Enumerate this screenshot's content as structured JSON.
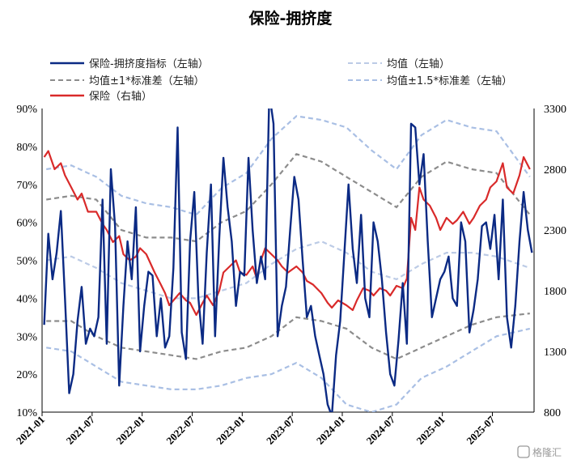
{
  "chart_data": {
    "type": "line",
    "title": "保险-拥挤度",
    "legend": [
      {
        "key": "crowding",
        "label": "保险-拥挤度指标（左轴）",
        "color": "#0b2a84",
        "style": "solid"
      },
      {
        "key": "mean",
        "label": "均值（左轴）",
        "color": "#bccbe6",
        "style": "dashed"
      },
      {
        "key": "band1",
        "label": "均值±1*标准差（左轴）",
        "color": "#8c8c8c",
        "style": "dashed"
      },
      {
        "key": "band15",
        "label": "均值±1.5*标准差（左轴）",
        "color": "#a9bfe4",
        "style": "dashed"
      },
      {
        "key": "index",
        "label": "保险（右轴）",
        "color": "#d92a2a",
        "style": "solid"
      }
    ],
    "left_axis": {
      "min": 0.1,
      "max": 0.9,
      "ticks": [
        "90%",
        "80%",
        "70%",
        "60%",
        "50%",
        "40%",
        "30%",
        "20%",
        "10%"
      ]
    },
    "right_axis": {
      "min": 800,
      "max": 3300,
      "ticks": [
        "3300",
        "2800",
        "2300",
        "1800",
        "1300",
        "800"
      ]
    },
    "x_labels": [
      "2021-01",
      "2021-07",
      "2022-01",
      "2022-07",
      "2023-01",
      "2023-07",
      "2024-01",
      "2024-07",
      "2025-01",
      "2025-07"
    ],
    "x_range": [
      "2021-01",
      "2025-11"
    ],
    "series": {
      "crowding": [
        [
          "2021-01",
          0.33
        ],
        [
          "2021-01",
          0.57
        ],
        [
          "2021-02",
          0.45
        ],
        [
          "2021-02",
          0.52
        ],
        [
          "2021-03",
          0.63
        ],
        [
          "2021-03",
          0.4
        ],
        [
          "2021-04",
          0.15
        ],
        [
          "2021-04",
          0.2
        ],
        [
          "2021-05",
          0.34
        ],
        [
          "2021-05",
          0.43
        ],
        [
          "2021-06",
          0.28
        ],
        [
          "2021-06",
          0.32
        ],
        [
          "2021-07",
          0.3
        ],
        [
          "2021-07",
          0.35
        ],
        [
          "2021-08",
          0.66
        ],
        [
          "2021-08",
          0.28
        ],
        [
          "2021-09",
          0.74
        ],
        [
          "2021-09",
          0.59
        ],
        [
          "2021-10",
          0.17
        ],
        [
          "2021-10",
          0.38
        ],
        [
          "2021-11",
          0.55
        ],
        [
          "2021-11",
          0.45
        ],
        [
          "2021-12",
          0.64
        ],
        [
          "2021-12",
          0.26
        ],
        [
          "2022-01",
          0.38
        ],
        [
          "2022-01",
          0.47
        ],
        [
          "2022-02",
          0.46
        ],
        [
          "2022-02",
          0.3
        ],
        [
          "2022-03",
          0.4
        ],
        [
          "2022-03",
          0.27
        ],
        [
          "2022-04",
          0.3
        ],
        [
          "2022-04",
          0.48
        ],
        [
          "2022-05",
          0.85
        ],
        [
          "2022-05",
          0.31
        ],
        [
          "2022-06",
          0.24
        ],
        [
          "2022-06",
          0.55
        ],
        [
          "2022-07",
          0.68
        ],
        [
          "2022-07",
          0.4
        ],
        [
          "2022-08",
          0.28
        ],
        [
          "2022-08",
          0.52
        ],
        [
          "2022-09",
          0.7
        ],
        [
          "2022-09",
          0.3
        ],
        [
          "2022-10",
          0.56
        ],
        [
          "2022-10",
          0.77
        ],
        [
          "2022-11",
          0.64
        ],
        [
          "2022-11",
          0.55
        ],
        [
          "2022-12",
          0.38
        ],
        [
          "2022-12",
          0.47
        ],
        [
          "2023-01",
          0.46
        ],
        [
          "2023-01",
          0.77
        ],
        [
          "2023-02",
          0.58
        ],
        [
          "2023-02",
          0.44
        ],
        [
          "2023-03",
          0.51
        ],
        [
          "2023-03",
          0.45
        ],
        [
          "2023-04",
          0.94
        ],
        [
          "2023-04",
          0.86
        ],
        [
          "2023-05",
          0.3
        ],
        [
          "2023-05",
          0.38
        ],
        [
          "2023-06",
          0.43
        ],
        [
          "2023-06",
          0.58
        ],
        [
          "2023-07",
          0.72
        ],
        [
          "2023-07",
          0.66
        ],
        [
          "2023-08",
          0.5
        ],
        [
          "2023-08",
          0.35
        ],
        [
          "2023-09",
          0.38
        ],
        [
          "2023-09",
          0.3
        ],
        [
          "2023-10",
          0.25
        ],
        [
          "2023-10",
          0.2
        ],
        [
          "2023-11",
          0.12
        ],
        [
          "2023-11",
          0.09
        ],
        [
          "2023-12",
          0.25
        ],
        [
          "2023-12",
          0.34
        ],
        [
          "2024-01",
          0.52
        ],
        [
          "2024-01",
          0.7
        ],
        [
          "2024-02",
          0.53
        ],
        [
          "2024-02",
          0.44
        ],
        [
          "2024-03",
          0.62
        ],
        [
          "2024-03",
          0.4
        ],
        [
          "2024-04",
          0.35
        ],
        [
          "2024-04",
          0.6
        ],
        [
          "2024-05",
          0.55
        ],
        [
          "2024-05",
          0.45
        ],
        [
          "2024-06",
          0.31
        ],
        [
          "2024-06",
          0.2
        ],
        [
          "2024-07",
          0.17
        ],
        [
          "2024-07",
          0.29
        ],
        [
          "2024-08",
          0.44
        ],
        [
          "2024-08",
          0.28
        ],
        [
          "2024-09",
          0.86
        ],
        [
          "2024-09",
          0.85
        ],
        [
          "2024-10",
          0.7
        ],
        [
          "2024-10",
          0.78
        ],
        [
          "2024-11",
          0.55
        ],
        [
          "2024-11",
          0.35
        ],
        [
          "2024-12",
          0.4
        ],
        [
          "2024-12",
          0.45
        ],
        [
          "2025-01",
          0.47
        ],
        [
          "2025-01",
          0.51
        ],
        [
          "2025-02",
          0.4
        ],
        [
          "2025-02",
          0.38
        ],
        [
          "2025-03",
          0.6
        ],
        [
          "2025-03",
          0.55
        ],
        [
          "2025-04",
          0.31
        ],
        [
          "2025-04",
          0.37
        ],
        [
          "2025-05",
          0.45
        ],
        [
          "2025-05",
          0.59
        ],
        [
          "2025-06",
          0.6
        ],
        [
          "2025-06",
          0.53
        ],
        [
          "2025-07",
          0.62
        ],
        [
          "2025-07",
          0.45
        ],
        [
          "2025-08",
          0.66
        ],
        [
          "2025-08",
          0.35
        ],
        [
          "2025-09",
          0.27
        ],
        [
          "2025-09",
          0.38
        ],
        [
          "2025-10",
          0.55
        ],
        [
          "2025-10",
          0.68
        ],
        [
          "2025-11",
          0.58
        ],
        [
          "2025-11",
          0.52
        ]
      ],
      "mean": [
        [
          "2021-01",
          0.5
        ],
        [
          "2021-04",
          0.51
        ],
        [
          "2021-07",
          0.48
        ],
        [
          "2021-10",
          0.44
        ],
        [
          "2022-01",
          0.42
        ],
        [
          "2022-04",
          0.4
        ],
        [
          "2022-07",
          0.4
        ],
        [
          "2022-10",
          0.42
        ],
        [
          "2023-01",
          0.44
        ],
        [
          "2023-04",
          0.49
        ],
        [
          "2023-07",
          0.53
        ],
        [
          "2023-10",
          0.55
        ],
        [
          "2024-01",
          0.52
        ],
        [
          "2024-04",
          0.47
        ],
        [
          "2024-07",
          0.45
        ],
        [
          "2024-10",
          0.49
        ],
        [
          "2025-01",
          0.52
        ],
        [
          "2025-04",
          0.52
        ],
        [
          "2025-07",
          0.51
        ],
        [
          "2025-11",
          0.48
        ]
      ],
      "band1_upper": [
        [
          "2021-01",
          0.66
        ],
        [
          "2021-04",
          0.67
        ],
        [
          "2021-07",
          0.66
        ],
        [
          "2021-10",
          0.58
        ],
        [
          "2022-01",
          0.56
        ],
        [
          "2022-04",
          0.56
        ],
        [
          "2022-07",
          0.55
        ],
        [
          "2022-10",
          0.6
        ],
        [
          "2023-01",
          0.63
        ],
        [
          "2023-04",
          0.7
        ],
        [
          "2023-07",
          0.78
        ],
        [
          "2023-10",
          0.76
        ],
        [
          "2024-01",
          0.72
        ],
        [
          "2024-04",
          0.68
        ],
        [
          "2024-07",
          0.64
        ],
        [
          "2024-10",
          0.72
        ],
        [
          "2025-01",
          0.76
        ],
        [
          "2025-04",
          0.74
        ],
        [
          "2025-07",
          0.73
        ],
        [
          "2025-11",
          0.62
        ]
      ],
      "band1_lower": [
        [
          "2021-01",
          0.34
        ],
        [
          "2021-04",
          0.34
        ],
        [
          "2021-07",
          0.3
        ],
        [
          "2021-10",
          0.27
        ],
        [
          "2022-01",
          0.26
        ],
        [
          "2022-04",
          0.25
        ],
        [
          "2022-07",
          0.24
        ],
        [
          "2022-10",
          0.26
        ],
        [
          "2023-01",
          0.27
        ],
        [
          "2023-04",
          0.3
        ],
        [
          "2023-07",
          0.35
        ],
        [
          "2023-10",
          0.34
        ],
        [
          "2024-01",
          0.32
        ],
        [
          "2024-04",
          0.27
        ],
        [
          "2024-07",
          0.24
        ],
        [
          "2024-10",
          0.27
        ],
        [
          "2025-01",
          0.3
        ],
        [
          "2025-04",
          0.33
        ],
        [
          "2025-07",
          0.35
        ],
        [
          "2025-11",
          0.36
        ]
      ],
      "band15_upper": [
        [
          "2021-01",
          0.74
        ],
        [
          "2021-04",
          0.75
        ],
        [
          "2021-07",
          0.72
        ],
        [
          "2021-10",
          0.67
        ],
        [
          "2022-01",
          0.65
        ],
        [
          "2022-04",
          0.64
        ],
        [
          "2022-07",
          0.62
        ],
        [
          "2022-10",
          0.69
        ],
        [
          "2023-01",
          0.73
        ],
        [
          "2023-04",
          0.82
        ],
        [
          "2023-07",
          0.88
        ],
        [
          "2023-10",
          0.87
        ],
        [
          "2024-01",
          0.85
        ],
        [
          "2024-04",
          0.79
        ],
        [
          "2024-07",
          0.74
        ],
        [
          "2024-10",
          0.83
        ],
        [
          "2025-01",
          0.87
        ],
        [
          "2025-04",
          0.85
        ],
        [
          "2025-07",
          0.84
        ],
        [
          "2025-11",
          0.72
        ]
      ],
      "band15_lower": [
        [
          "2021-01",
          0.27
        ],
        [
          "2021-04",
          0.26
        ],
        [
          "2021-07",
          0.22
        ],
        [
          "2021-10",
          0.18
        ],
        [
          "2022-01",
          0.17
        ],
        [
          "2022-04",
          0.16
        ],
        [
          "2022-07",
          0.16
        ],
        [
          "2022-10",
          0.17
        ],
        [
          "2023-01",
          0.19
        ],
        [
          "2023-04",
          0.2
        ],
        [
          "2023-07",
          0.23
        ],
        [
          "2023-10",
          0.19
        ],
        [
          "2024-01",
          0.12
        ],
        [
          "2024-04",
          0.1
        ],
        [
          "2024-07",
          0.12
        ],
        [
          "2024-10",
          0.19
        ],
        [
          "2025-01",
          0.22
        ],
        [
          "2025-04",
          0.26
        ],
        [
          "2025-07",
          0.3
        ],
        [
          "2025-11",
          0.32
        ]
      ],
      "index": [
        [
          "2021-01",
          2900
        ],
        [
          "2021-01",
          2950
        ],
        [
          "2021-02",
          2800
        ],
        [
          "2021-03",
          2850
        ],
        [
          "2021-03",
          2750
        ],
        [
          "2021-04",
          2650
        ],
        [
          "2021-05",
          2550
        ],
        [
          "2021-05",
          2600
        ],
        [
          "2021-06",
          2450
        ],
        [
          "2021-07",
          2450
        ],
        [
          "2021-08",
          2350
        ],
        [
          "2021-08",
          2300
        ],
        [
          "2021-09",
          2200
        ],
        [
          "2021-10",
          2250
        ],
        [
          "2021-10",
          2100
        ],
        [
          "2021-11",
          2050
        ],
        [
          "2021-12",
          2080
        ],
        [
          "2021-12",
          2150
        ],
        [
          "2022-01",
          2100
        ],
        [
          "2022-02",
          1950
        ],
        [
          "2022-03",
          1850
        ],
        [
          "2022-03",
          1780
        ],
        [
          "2022-04",
          1680
        ],
        [
          "2022-04",
          1720
        ],
        [
          "2022-05",
          1780
        ],
        [
          "2022-06",
          1720
        ],
        [
          "2022-06",
          1700
        ],
        [
          "2022-07",
          1600
        ],
        [
          "2022-08",
          1700
        ],
        [
          "2022-08",
          1760
        ],
        [
          "2022-09",
          1680
        ],
        [
          "2022-10",
          1800
        ],
        [
          "2022-10",
          1950
        ],
        [
          "2022-11",
          2000
        ],
        [
          "2022-12",
          2050
        ],
        [
          "2022-12",
          1950
        ],
        [
          "2023-01",
          1930
        ],
        [
          "2023-02",
          2000
        ],
        [
          "2023-02",
          1900
        ],
        [
          "2023-03",
          2050
        ],
        [
          "2023-03",
          2150
        ],
        [
          "2023-04",
          2100
        ],
        [
          "2023-05",
          2050
        ],
        [
          "2023-05",
          2000
        ],
        [
          "2023-06",
          1950
        ],
        [
          "2023-07",
          2000
        ],
        [
          "2023-08",
          1950
        ],
        [
          "2023-08",
          1880
        ],
        [
          "2023-09",
          1850
        ],
        [
          "2023-10",
          1780
        ],
        [
          "2023-11",
          1700
        ],
        [
          "2023-11",
          1660
        ],
        [
          "2023-12",
          1720
        ],
        [
          "2024-01",
          1680
        ],
        [
          "2024-02",
          1640
        ],
        [
          "2024-02",
          1720
        ],
        [
          "2024-03",
          1820
        ],
        [
          "2024-04",
          1800
        ],
        [
          "2024-04",
          1760
        ],
        [
          "2024-05",
          1820
        ],
        [
          "2024-06",
          1800
        ],
        [
          "2024-06",
          1760
        ],
        [
          "2024-07",
          1840
        ],
        [
          "2024-08",
          1820
        ],
        [
          "2024-08",
          1900
        ],
        [
          "2024-09",
          2400
        ],
        [
          "2024-09",
          2300
        ],
        [
          "2024-10",
          2650
        ],
        [
          "2024-10",
          2550
        ],
        [
          "2024-11",
          2500
        ],
        [
          "2024-12",
          2400
        ],
        [
          "2024-12",
          2300
        ],
        [
          "2025-01",
          2400
        ],
        [
          "2025-02",
          2350
        ],
        [
          "2025-02",
          2380
        ],
        [
          "2025-03",
          2450
        ],
        [
          "2025-04",
          2350
        ],
        [
          "2025-04",
          2400
        ],
        [
          "2025-05",
          2500
        ],
        [
          "2025-06",
          2550
        ],
        [
          "2025-06",
          2650
        ],
        [
          "2025-07",
          2700
        ],
        [
          "2025-08",
          2850
        ],
        [
          "2025-08",
          2650
        ],
        [
          "2025-09",
          2600
        ],
        [
          "2025-10",
          2750
        ],
        [
          "2025-10",
          2900
        ],
        [
          "2025-11",
          2800
        ]
      ]
    }
  },
  "watermark": "格隆汇"
}
